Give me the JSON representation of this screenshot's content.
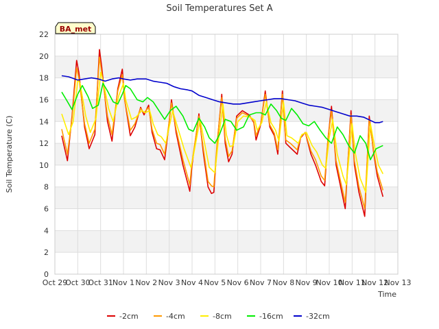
{
  "chart_data": {
    "type": "line",
    "title": "Soil Temperatures Set A",
    "xlabel": "Time",
    "ylabel": "Soil Temperature (C)",
    "badge": "BA_met",
    "ylim": [
      0,
      22
    ],
    "yticks": [
      0,
      2,
      4,
      6,
      8,
      10,
      12,
      14,
      16,
      18,
      20,
      22
    ],
    "xlim": [
      0,
      15
    ],
    "xticks": [
      {
        "pos": 0,
        "label": "Oct 29"
      },
      {
        "pos": 1,
        "label": "Oct 30"
      },
      {
        "pos": 2,
        "label": "Oct 31"
      },
      {
        "pos": 3,
        "label": "Nov 1"
      },
      {
        "pos": 4,
        "label": "Nov 2"
      },
      {
        "pos": 5,
        "label": "Nov 3"
      },
      {
        "pos": 6,
        "label": "Nov 4"
      },
      {
        "pos": 7,
        "label": "Nov 5"
      },
      {
        "pos": 8,
        "label": "Nov 6"
      },
      {
        "pos": 9,
        "label": "Nov 7"
      },
      {
        "pos": 10,
        "label": "Nov 8"
      },
      {
        "pos": 11,
        "label": "Nov 9"
      },
      {
        "pos": 12,
        "label": "Nov 10"
      },
      {
        "pos": 13,
        "label": "Nov 11"
      },
      {
        "pos": 14,
        "label": "Nov 12"
      },
      {
        "pos": 15,
        "label": "Nov 13"
      }
    ],
    "grid": true,
    "legend_position": "bottom",
    "series": [
      {
        "name": "-2cm",
        "color": "#dd0000",
        "x": [
          0.3,
          0.55,
          0.75,
          0.95,
          1.05,
          1.3,
          1.5,
          1.75,
          1.95,
          2.05,
          2.3,
          2.5,
          2.75,
          2.95,
          3.05,
          3.3,
          3.5,
          3.75,
          3.9,
          4.1,
          4.25,
          4.45,
          4.6,
          4.8,
          4.95,
          5.1,
          5.3,
          5.6,
          5.9,
          6.0,
          6.3,
          6.5,
          6.7,
          6.85,
          6.95,
          7.1,
          7.3,
          7.45,
          7.6,
          7.75,
          7.95,
          8.2,
          8.5,
          8.7,
          8.8,
          9.0,
          9.2,
          9.4,
          9.6,
          9.75,
          9.95,
          10.1,
          10.3,
          10.6,
          10.75,
          10.95,
          11.2,
          11.4,
          11.65,
          11.8,
          11.95,
          12.1,
          12.3,
          12.55,
          12.7,
          12.95,
          13.1,
          13.3,
          13.55,
          13.75,
          13.95,
          14.1,
          14.35
        ],
        "y": [
          12.7,
          10.4,
          14.5,
          19.6,
          18.5,
          13.5,
          11.5,
          12.8,
          20.6,
          19.0,
          14.0,
          12.2,
          17.0,
          18.8,
          16.0,
          12.7,
          13.5,
          15.3,
          14.6,
          15.5,
          13.0,
          11.5,
          11.4,
          10.5,
          13.0,
          16.0,
          13.0,
          10.0,
          7.6,
          10.0,
          14.7,
          11.0,
          8.0,
          7.4,
          7.5,
          12.0,
          16.5,
          12.0,
          10.3,
          11.0,
          14.5,
          15.0,
          14.6,
          13.9,
          12.3,
          13.7,
          16.8,
          13.5,
          12.7,
          11.0,
          16.8,
          12.0,
          11.6,
          11.0,
          12.5,
          13.0,
          11.0,
          10.0,
          8.5,
          8.1,
          12.5,
          15.4,
          10.0,
          7.5,
          6.0,
          15.0,
          10.0,
          7.5,
          5.3,
          14.5,
          11.0,
          9.0,
          7.1
        ]
      },
      {
        "name": "-4cm",
        "color": "#ff9900",
        "x": [
          0.3,
          0.55,
          0.75,
          0.95,
          1.05,
          1.3,
          1.5,
          1.75,
          1.95,
          2.05,
          2.3,
          2.5,
          2.75,
          2.95,
          3.05,
          3.3,
          3.5,
          3.75,
          3.9,
          4.1,
          4.25,
          4.45,
          4.6,
          4.8,
          4.95,
          5.1,
          5.3,
          5.6,
          5.9,
          6.0,
          6.3,
          6.5,
          6.7,
          6.85,
          6.95,
          7.1,
          7.3,
          7.45,
          7.6,
          7.75,
          7.95,
          8.2,
          8.5,
          8.7,
          8.8,
          9.0,
          9.2,
          9.4,
          9.6,
          9.75,
          9.95,
          10.1,
          10.3,
          10.6,
          10.75,
          10.95,
          11.2,
          11.4,
          11.65,
          11.8,
          11.95,
          12.1,
          12.3,
          12.55,
          12.7,
          12.95,
          13.1,
          13.3,
          13.55,
          13.75,
          13.95,
          14.1,
          14.35
        ],
        "y": [
          13.3,
          11.0,
          14.3,
          18.9,
          18.0,
          13.8,
          12.0,
          13.3,
          19.9,
          18.5,
          14.5,
          12.8,
          16.8,
          18.3,
          16.0,
          13.2,
          13.8,
          15.2,
          14.8,
          15.3,
          13.3,
          12.0,
          11.9,
          11.0,
          13.2,
          15.7,
          13.3,
          10.5,
          8.2,
          10.3,
          14.5,
          11.4,
          8.5,
          8.1,
          8.0,
          12.2,
          16.2,
          12.4,
          10.8,
          11.3,
          14.3,
          14.8,
          14.5,
          14.0,
          12.7,
          13.8,
          16.5,
          13.7,
          12.9,
          11.4,
          16.5,
          12.3,
          12.0,
          11.4,
          12.6,
          13.0,
          11.3,
          10.5,
          9.0,
          8.6,
          12.5,
          15.0,
          10.4,
          8.0,
          6.6,
          14.6,
          10.4,
          8.0,
          6.0,
          14.2,
          11.2,
          9.4,
          7.7
        ]
      },
      {
        "name": "-8cm",
        "color": "#ffee00",
        "x": [
          0.3,
          0.6,
          0.8,
          1.0,
          1.1,
          1.35,
          1.55,
          1.8,
          2.0,
          2.1,
          2.35,
          2.55,
          2.8,
          3.0,
          3.1,
          3.35,
          3.55,
          3.8,
          3.95,
          4.15,
          4.3,
          4.5,
          4.65,
          4.85,
          5.0,
          5.15,
          5.35,
          5.65,
          5.95,
          6.05,
          6.35,
          6.55,
          6.75,
          6.9,
          7.0,
          7.15,
          7.35,
          7.5,
          7.65,
          7.8,
          8.0,
          8.25,
          8.55,
          8.75,
          8.85,
          9.05,
          9.25,
          9.45,
          9.65,
          9.8,
          10.0,
          10.15,
          10.35,
          10.65,
          10.8,
          11.0,
          11.25,
          11.45,
          11.7,
          11.85,
          12.0,
          12.15,
          12.35,
          12.6,
          12.75,
          13.0,
          13.15,
          13.35,
          13.6,
          13.8,
          14.0,
          14.15,
          14.35
        ],
        "y": [
          14.7,
          12.8,
          14.0,
          17.8,
          17.5,
          14.5,
          13.0,
          14.3,
          18.5,
          17.8,
          15.2,
          14.0,
          16.4,
          17.5,
          16.0,
          14.2,
          14.4,
          15.0,
          14.8,
          15.0,
          13.8,
          12.8,
          12.6,
          12.0,
          13.5,
          15.0,
          13.6,
          11.5,
          9.8,
          10.8,
          14.2,
          12.0,
          9.8,
          9.5,
          9.3,
          12.2,
          15.6,
          12.8,
          11.7,
          11.8,
          14.0,
          14.5,
          14.4,
          14.1,
          13.2,
          13.9,
          15.8,
          13.9,
          13.2,
          12.2,
          15.8,
          12.7,
          12.5,
          12.0,
          12.8,
          13.0,
          11.8,
          11.2,
          10.0,
          9.7,
          12.5,
          14.2,
          11.0,
          9.0,
          8.2,
          13.8,
          11.0,
          8.8,
          7.5,
          13.8,
          11.5,
          10.0,
          9.2
        ]
      },
      {
        "name": "-16cm",
        "color": "#00ee00",
        "x": [
          0.3,
          0.5,
          0.75,
          1.0,
          1.2,
          1.45,
          1.65,
          1.9,
          2.1,
          2.3,
          2.55,
          2.75,
          2.95,
          3.1,
          3.3,
          3.6,
          3.85,
          4.05,
          4.3,
          4.55,
          4.8,
          5.05,
          5.3,
          5.6,
          5.85,
          6.05,
          6.3,
          6.55,
          6.75,
          7.0,
          7.2,
          7.45,
          7.7,
          7.95,
          8.25,
          8.5,
          8.8,
          9.0,
          9.2,
          9.45,
          9.7,
          9.9,
          10.1,
          10.35,
          10.6,
          10.85,
          11.1,
          11.35,
          11.6,
          11.85,
          12.1,
          12.35,
          12.6,
          12.85,
          13.1,
          13.35,
          13.6,
          13.8,
          14.05,
          14.35
        ],
        "y": [
          16.7,
          16.0,
          15.1,
          16.5,
          17.3,
          16.3,
          15.2,
          15.5,
          17.5,
          16.8,
          15.8,
          15.6,
          16.5,
          17.3,
          17.0,
          16.0,
          15.8,
          16.2,
          15.8,
          15.0,
          14.2,
          15.0,
          15.4,
          14.5,
          13.3,
          13.1,
          14.3,
          13.5,
          12.5,
          12.0,
          12.8,
          14.2,
          14.0,
          13.2,
          13.5,
          14.6,
          14.8,
          14.8,
          14.6,
          15.6,
          15.0,
          14.3,
          14.1,
          15.2,
          14.6,
          13.8,
          13.6,
          14.0,
          13.2,
          12.5,
          12.0,
          13.5,
          12.8,
          11.8,
          11.1,
          12.7,
          12.0,
          10.5,
          11.5,
          11.8
        ]
      },
      {
        "name": "-32cm",
        "color": "#0000cc",
        "x": [
          0.3,
          0.6,
          1.0,
          1.3,
          1.6,
          1.9,
          2.2,
          2.5,
          2.8,
          3.0,
          3.3,
          3.6,
          4.0,
          4.3,
          4.6,
          4.9,
          5.2,
          5.5,
          5.8,
          6.0,
          6.3,
          6.6,
          6.9,
          7.2,
          7.5,
          7.8,
          8.1,
          8.4,
          8.7,
          9.0,
          9.3,
          9.6,
          9.9,
          10.2,
          10.5,
          10.8,
          11.1,
          11.4,
          11.7,
          12.0,
          12.3,
          12.6,
          12.9,
          13.2,
          13.5,
          13.8,
          14.0,
          14.2,
          14.35
        ],
        "y": [
          18.2,
          18.1,
          17.8,
          17.9,
          18.0,
          17.9,
          17.7,
          17.9,
          18.0,
          17.9,
          17.8,
          17.9,
          17.9,
          17.7,
          17.6,
          17.5,
          17.2,
          17.0,
          16.9,
          16.8,
          16.4,
          16.2,
          16.0,
          15.8,
          15.7,
          15.6,
          15.6,
          15.7,
          15.8,
          15.9,
          16.0,
          16.1,
          16.1,
          16.0,
          15.9,
          15.7,
          15.5,
          15.4,
          15.3,
          15.1,
          14.9,
          14.7,
          14.5,
          14.5,
          14.4,
          14.1,
          13.9,
          13.9,
          14.0
        ]
      }
    ]
  }
}
